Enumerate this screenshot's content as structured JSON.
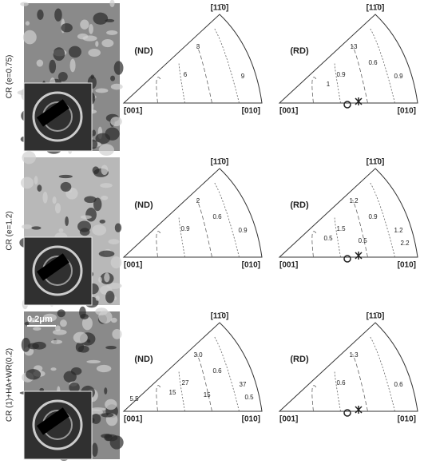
{
  "rows": [
    {
      "label": "CR (e=0.75)",
      "figures": [
        {
          "frame": "(ND)",
          "corners": [
            "[001]",
            "[010]",
            "[11̄0]"
          ],
          "contours": [
            "3",
            "9",
            "6"
          ]
        },
        {
          "frame": "(RD)",
          "corners": [
            "[001]",
            "[010]",
            "[11̄0]"
          ],
          "contours": [
            "13",
            "0.9",
            "0.9",
            "0.6",
            "1"
          ]
        }
      ]
    },
    {
      "label": "CR (e=1.2)",
      "figures": [
        {
          "frame": "(ND)",
          "corners": [
            "[001]",
            "[010]",
            "[11̄0]"
          ],
          "contours": [
            "2",
            "0.9",
            "0.9",
            "0.6"
          ]
        },
        {
          "frame": "(RD)",
          "corners": [
            "[001]",
            "[010]",
            "[11̄0]"
          ],
          "contours": [
            "1.2",
            "1.2",
            "1.5",
            "0.9",
            "0.5",
            "0.5",
            "2.2"
          ]
        }
      ]
    },
    {
      "label": "CR (1)+HA+WR(0.2)",
      "scale": "0.2μm",
      "figures": [
        {
          "frame": "(ND)",
          "corners": [
            "[001]",
            "[010]",
            "[11̄0]"
          ],
          "contours": [
            "3.0",
            "37",
            "27",
            "0.6",
            "15",
            "15",
            "0.5",
            "5.5"
          ]
        },
        {
          "frame": "(RD)",
          "corners": [
            "[001]",
            "[010]",
            "[11̄0]"
          ],
          "contours": [
            "1.3",
            "0.6",
            "0.6"
          ]
        }
      ]
    }
  ]
}
